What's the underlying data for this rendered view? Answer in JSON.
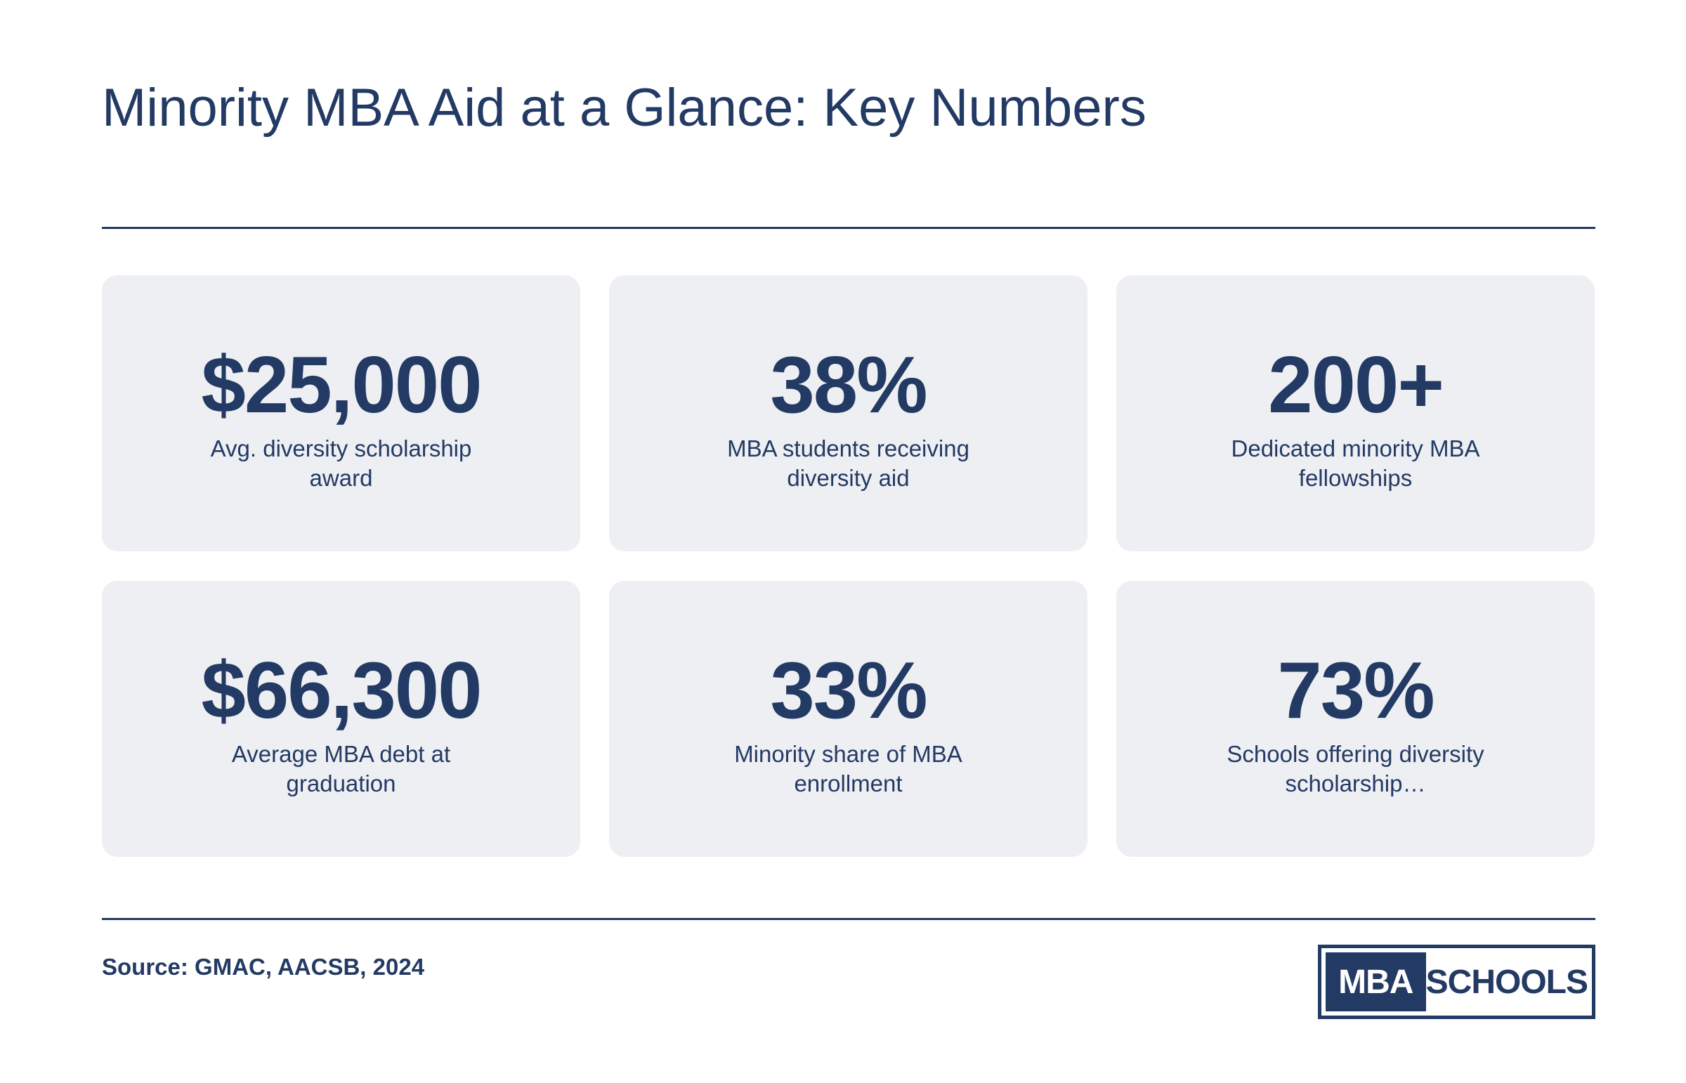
{
  "title": "Minority MBA Aid at a Glance: Key Numbers",
  "stats": [
    {
      "value": "$25,000",
      "label": "Avg. diversity scholarship award"
    },
    {
      "value": "38%",
      "label": "MBA students receiving diversity aid"
    },
    {
      "value": "200+",
      "label": "Dedicated minority MBA fellowships"
    },
    {
      "value": "$66,300",
      "label": "Average MBA debt at graduation"
    },
    {
      "value": "33%",
      "label": "Minority share of MBA enrollment"
    },
    {
      "value": "73%",
      "label": "Schools offering diversity scholarship…"
    }
  ],
  "footer": {
    "source": "Source: GMAC, AACSB, 2024",
    "logo_left": "MBA",
    "logo_right": "SCHOOLS"
  },
  "colors": {
    "navy": "#233a64",
    "card_bg": "#eeeff3",
    "background": "#ffffff"
  }
}
